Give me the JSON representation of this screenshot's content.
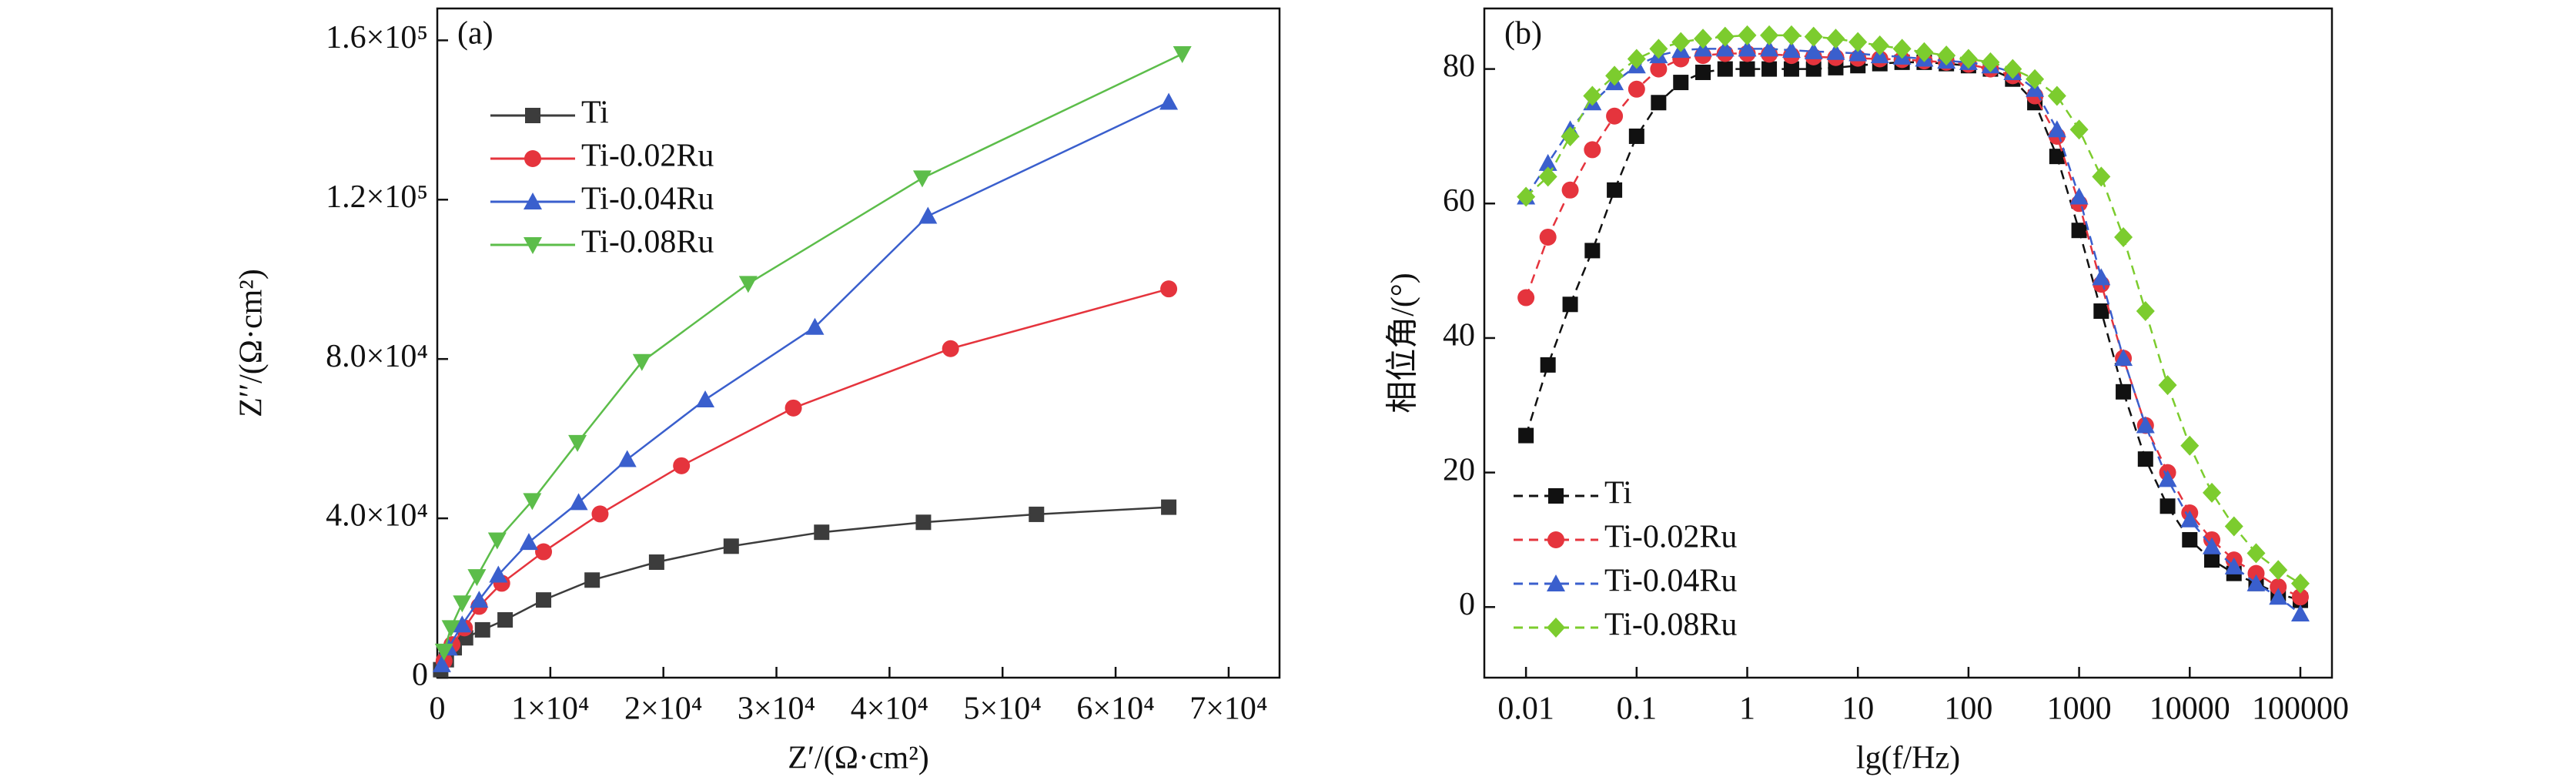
{
  "chart_data": [
    {
      "type": "line",
      "panel_label": "(a)",
      "x_label": "Z′/(Ω·cm²)",
      "y_label": "Z′′/(Ω·cm²)",
      "xlim": [
        0,
        74500
      ],
      "ylim": [
        0,
        168000
      ],
      "xticks": [
        0,
        {
          "value": 10000,
          "label": "1×10⁴"
        },
        {
          "value": 20000,
          "label": "2×10⁴"
        },
        {
          "value": 30000,
          "label": "3×10⁴"
        },
        {
          "value": 40000,
          "label": "4×10⁴"
        },
        {
          "value": 50000,
          "label": "5×10⁴"
        },
        {
          "value": 60000,
          "label": "6×10⁴"
        },
        {
          "value": 70000,
          "label": "7×10⁴"
        }
      ],
      "yticks": [
        0,
        {
          "value": 40000,
          "label": "4.0×10⁴"
        },
        {
          "value": 80000,
          "label": "8.0×10⁴"
        },
        {
          "value": 120000,
          "label": "1.2×10⁵"
        },
        {
          "value": 160000,
          "label": "1.6×10⁵"
        }
      ],
      "legend": "upper left",
      "linestyle": "solid",
      "series": [
        {
          "name": "Ti",
          "color": "#3c3c3c",
          "marker": "square",
          "x": [
            300,
            800,
            1500,
            2500,
            4000,
            6000,
            9400,
            13700,
            19400,
            26000,
            34000,
            43000,
            53000,
            64700
          ],
          "values": [
            2000,
            4500,
            7500,
            10000,
            12000,
            14500,
            19500,
            24500,
            29000,
            33000,
            36500,
            39000,
            41000,
            42800
          ]
        },
        {
          "name": "Ti-0.02Ru",
          "color": "#e5343d",
          "marker": "circle",
          "x": [
            600,
            1300,
            2400,
            3700,
            5700,
            9400,
            14400,
            21600,
            31500,
            45400,
            64700
          ],
          "values": [
            4200,
            8300,
            12500,
            17900,
            23700,
            31600,
            41100,
            53200,
            67700,
            82600,
            97600
          ]
        },
        {
          "name": "Ti-0.04Ru",
          "color": "#3a5fcd",
          "marker": "triangle-up",
          "x": [
            400,
            1000,
            2200,
            3700,
            5400,
            8100,
            12500,
            16800,
            23700,
            33400,
            43400,
            64700
          ],
          "values": [
            3300,
            7500,
            13300,
            19500,
            25800,
            34000,
            44000,
            54800,
            69800,
            88000,
            115900,
            144500
          ]
        },
        {
          "name": "Ti-0.08Ru",
          "color": "#5cbd4a",
          "marker": "triangle-down",
          "x": [
            600,
            1200,
            2200,
            3500,
            5300,
            8400,
            12400,
            18100,
            27500,
            42900,
            65900
          ],
          "values": [
            6600,
            12500,
            18700,
            25300,
            34500,
            44400,
            59000,
            79300,
            98900,
            125400,
            156600
          ]
        }
      ]
    },
    {
      "type": "line",
      "panel_label": "(b)",
      "x_label": "lg(f/Hz)",
      "y_label": "相位角/(°)",
      "xscale": "log",
      "xlim": [
        0.0042,
        193000
      ],
      "ylim": [
        -10.5,
        89
      ],
      "xticks": [
        0.01,
        0.1,
        1,
        10,
        100,
        1000,
        10000,
        100000
      ],
      "yticks": [
        0,
        20,
        40,
        60,
        80
      ],
      "legend": "lower left",
      "linestyle": "dashed",
      "x": [
        0.01,
        0.0158,
        0.0251,
        0.0398,
        0.0631,
        0.1,
        0.158,
        0.251,
        0.398,
        0.631,
        1,
        1.58,
        2.51,
        3.98,
        6.31,
        10,
        15.8,
        25.1,
        39.8,
        63.1,
        100,
        158,
        251,
        398,
        631,
        1000,
        1585,
        2512,
        3981,
        6310,
        10000,
        15849,
        25119,
        39811,
        63096,
        100000
      ],
      "series": [
        {
          "name": "Ti",
          "color": "#111111",
          "marker": "square",
          "values": [
            25.5,
            36,
            45,
            53,
            62,
            70,
            75,
            78,
            79.5,
            80,
            80,
            80,
            80,
            80,
            80.2,
            80.5,
            80.8,
            81,
            81,
            80.8,
            80.5,
            80,
            78.5,
            75,
            67,
            56,
            44,
            32,
            22,
            15,
            10,
            7,
            5,
            3.5,
            2,
            1
          ]
        },
        {
          "name": "Ti-0.02Ru",
          "color": "#e5343d",
          "marker": "circle",
          "values": [
            46,
            55,
            62,
            68,
            73,
            77,
            80,
            81.5,
            82,
            82.3,
            82.3,
            82.2,
            82,
            81.8,
            81.7,
            81.6,
            81.5,
            81.4,
            81.2,
            81,
            80.7,
            80,
            79,
            76,
            70,
            60,
            48,
            37,
            27,
            20,
            14,
            10,
            7,
            5,
            3,
            1.5
          ]
        },
        {
          "name": "Ti-0.04Ru",
          "color": "#3a5fcd",
          "marker": "triangle-up",
          "values": [
            61,
            66,
            71,
            75,
            78,
            80.5,
            82,
            82.8,
            83,
            83,
            83,
            83,
            82.8,
            82.6,
            82.5,
            82.3,
            82,
            81.8,
            81.5,
            81.2,
            81,
            80.5,
            79.5,
            77,
            71,
            61,
            49,
            37,
            27,
            19,
            13,
            9,
            6,
            3.5,
            1.5,
            -1
          ]
        },
        {
          "name": "Ti-0.08Ru",
          "color": "#7ccc2e",
          "marker": "diamond",
          "values": [
            61,
            64,
            70,
            76,
            79,
            81.5,
            83,
            84,
            84.5,
            84.8,
            85,
            85,
            85,
            84.8,
            84.5,
            84,
            83.5,
            83,
            82.5,
            82,
            81.5,
            81,
            80,
            78.5,
            76,
            71,
            64,
            55,
            44,
            33,
            24,
            17,
            12,
            8,
            5.5,
            3.5
          ]
        }
      ]
    }
  ]
}
